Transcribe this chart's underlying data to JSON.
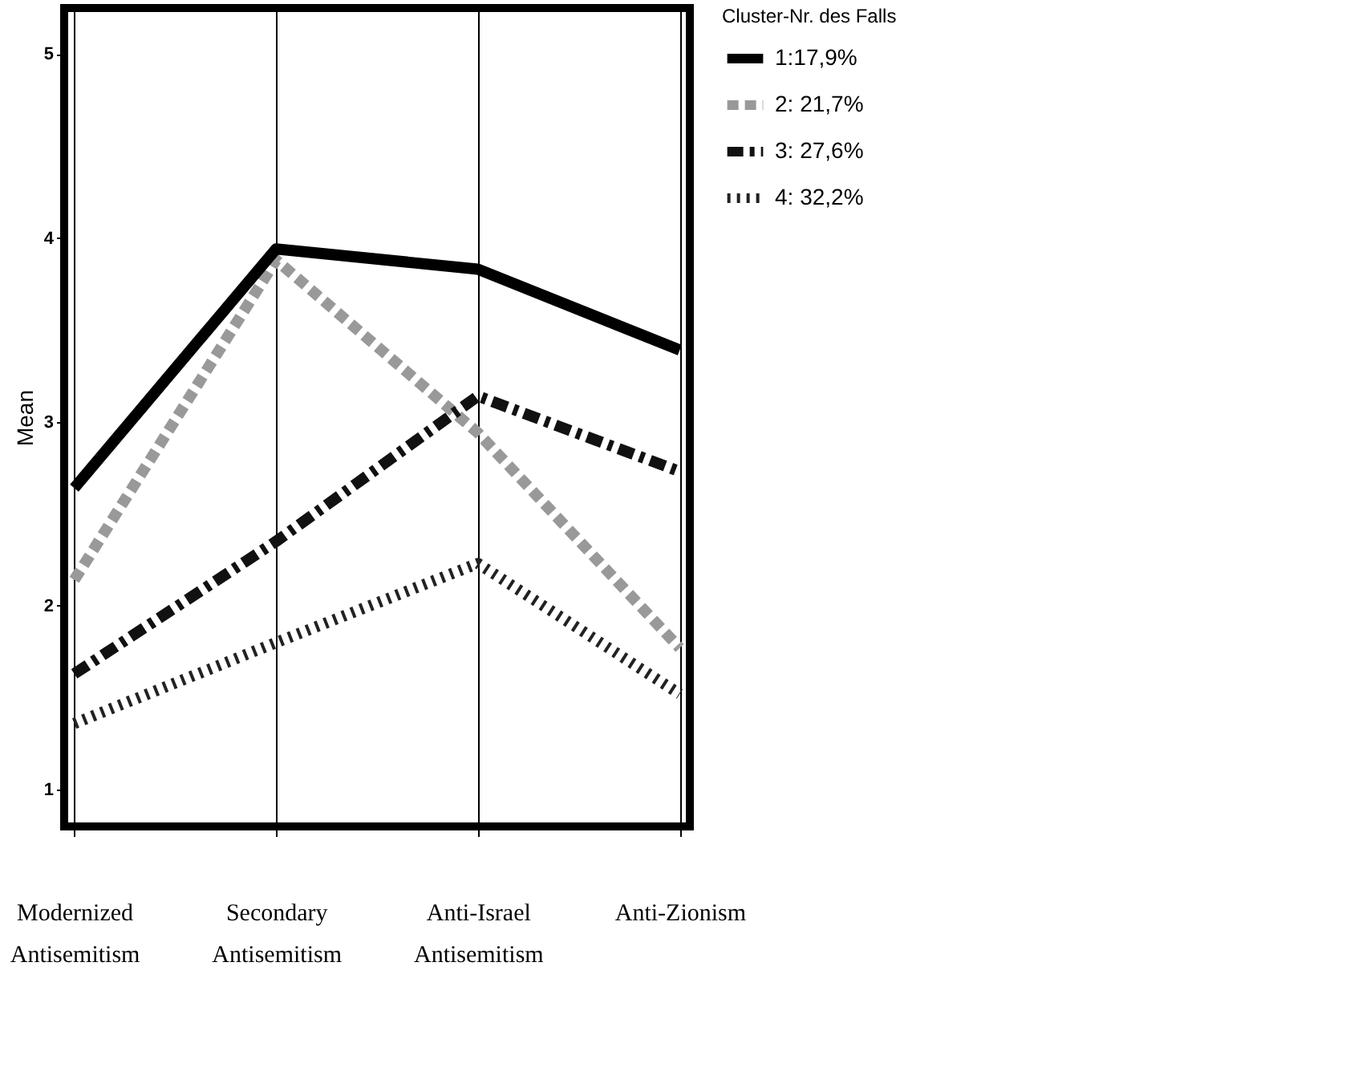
{
  "chart_data": {
    "type": "line",
    "ylabel": "Mean",
    "legend_title": "Cluster-Nr.  des Falls",
    "categories": [
      "Modernized Antisemitism",
      "Secondary Antisemitism",
      "Anti-Israel Antisemitism",
      "Anti-Zionism"
    ],
    "series": [
      {
        "name": "1:17,9%",
        "color": "#000000",
        "line_style": "solid",
        "values": [
          2.64,
          3.94,
          3.83,
          3.39
        ]
      },
      {
        "name": "2: 21,7%",
        "color": "#999999",
        "line_style": "dashed",
        "values": [
          2.14,
          3.88,
          2.94,
          1.77
        ]
      },
      {
        "name": "3: 27,6%",
        "color": "#111111",
        "line_style": "dashdot",
        "values": [
          1.63,
          2.35,
          3.14,
          2.73
        ]
      },
      {
        "name": "4: 32,2%",
        "color": "#222222",
        "line_style": "dotted",
        "values": [
          1.36,
          1.8,
          2.23,
          1.52
        ]
      }
    ],
    "ylim": [
      0.8,
      5.25
    ],
    "yticks": [
      1,
      2,
      3,
      4,
      5
    ],
    "grid": "x",
    "legend": "top right",
    "marker": "none"
  }
}
